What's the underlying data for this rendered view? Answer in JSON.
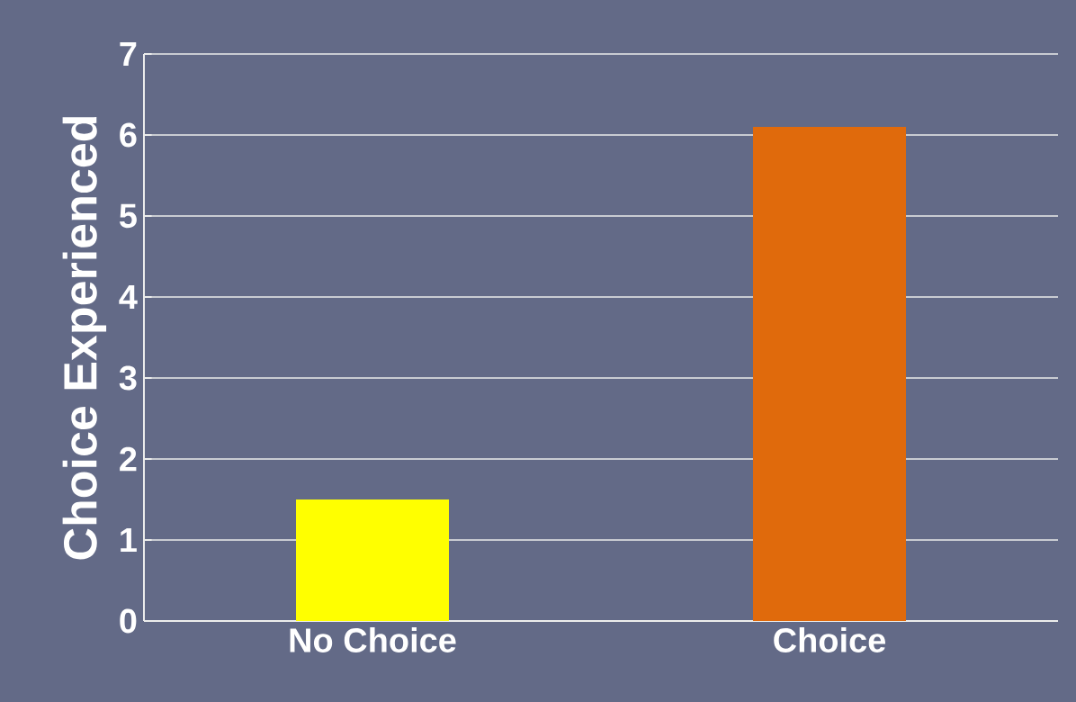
{
  "chart_data": {
    "type": "bar",
    "ylabel": "Choice Experienced",
    "categories": [
      "No Choice",
      "Choice"
    ],
    "values": [
      1.5,
      6.1
    ],
    "colors": [
      "#ffff00",
      "#e06a0c"
    ],
    "ylim": [
      0,
      7
    ],
    "yticks": [
      0,
      1,
      2,
      3,
      4,
      5,
      6,
      7
    ],
    "grid": "y"
  }
}
